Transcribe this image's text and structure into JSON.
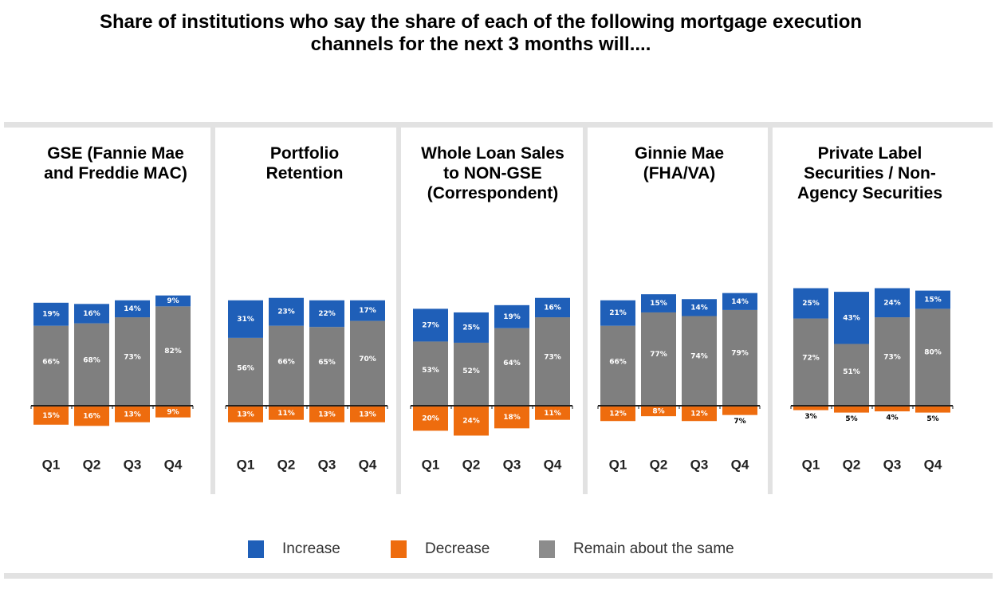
{
  "chart_data": {
    "type": "bar",
    "subtype": "stacked-diverging",
    "title": "Share of institutions who say the share of each of the following mortgage execution channels for the next 3 months will....",
    "title_lines": [
      "Share of institutions who say the share of each of the following mortgage execution",
      "channels for the next 3 months will...."
    ],
    "categories": [
      "Q1",
      "Q2",
      "Q3",
      "Q4"
    ],
    "value_unit": "%",
    "legend": {
      "position": "bottom",
      "entries": [
        {
          "key": "increase",
          "label": "Increase",
          "color": "#1f5fb8"
        },
        {
          "key": "decrease",
          "label": "Decrease",
          "color": "#ee6c0e"
        },
        {
          "key": "same",
          "label": "Remain about the same",
          "color": "#7f7f7f"
        }
      ]
    },
    "panels": [
      {
        "title": "GSE (Fannie Mae and Freddie MAC)",
        "title_lines": [
          "GSE (Fannie Mae",
          "and Freddie MAC)"
        ],
        "series": [
          {
            "name": "Increase",
            "values": [
              19,
              16,
              14,
              9
            ]
          },
          {
            "name": "Remain about the same",
            "values": [
              66,
              68,
              73,
              82
            ]
          },
          {
            "name": "Decrease",
            "values": [
              15,
              16,
              13,
              9
            ]
          }
        ]
      },
      {
        "title": "Portfolio Retention",
        "title_lines": [
          "Portfolio",
          "Retention"
        ],
        "series": [
          {
            "name": "Increase",
            "values": [
              31,
              23,
              22,
              17
            ]
          },
          {
            "name": "Remain about the same",
            "values": [
              56,
              66,
              65,
              70
            ]
          },
          {
            "name": "Decrease",
            "values": [
              13,
              11,
              13,
              13
            ]
          }
        ]
      },
      {
        "title": "Whole Loan Sales to NON-GSE (Correspondent)",
        "title_lines": [
          "Whole Loan Sales",
          "to NON-GSE",
          "(Correspondent)"
        ],
        "series": [
          {
            "name": "Increase",
            "values": [
              27,
              25,
              19,
              16
            ]
          },
          {
            "name": "Remain about the same",
            "values": [
              53,
              52,
              64,
              73
            ]
          },
          {
            "name": "Decrease",
            "values": [
              20,
              24,
              18,
              11
            ]
          }
        ]
      },
      {
        "title": "Ginnie Mae (FHA/VA)",
        "title_lines": [
          "Ginnie Mae",
          "(FHA/VA)"
        ],
        "series": [
          {
            "name": "Increase",
            "values": [
              21,
              15,
              14,
              14
            ]
          },
          {
            "name": "Remain about the same",
            "values": [
              66,
              77,
              74,
              79
            ]
          },
          {
            "name": "Decrease",
            "values": [
              12,
              8,
              12,
              7
            ]
          }
        ]
      },
      {
        "title": "Private Label Securities / Non-Agency Securities",
        "title_lines": [
          "Private Label",
          "Securities / Non-",
          "Agency Securities"
        ],
        "series": [
          {
            "name": "Increase",
            "values": [
              25,
              43,
              24,
              15
            ]
          },
          {
            "name": "Remain about the same",
            "values": [
              72,
              51,
              73,
              80
            ]
          },
          {
            "name": "Decrease",
            "values": [
              3,
              5,
              4,
              5
            ]
          }
        ]
      }
    ],
    "xlabel": "",
    "ylabel": "",
    "grid": false
  }
}
